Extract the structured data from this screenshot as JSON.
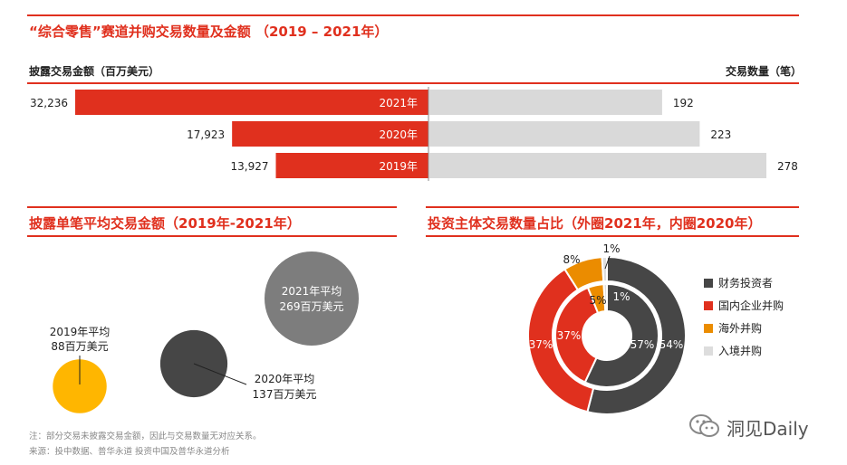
{
  "section1": {
    "title": "“综合零售”赛道并购交易数量及金额 （2019 – 2021年）",
    "left_label": "披露交易金额（百万美元）",
    "right_label": "交易数量（笔）"
  },
  "section2": {
    "title": "披露单笔平均交易金额（2019年-2021年）"
  },
  "section3": {
    "title": "投资主体交易数量占比（外圈2021年，内圈2020年）"
  },
  "chart_data": [
    {
      "type": "bar",
      "orientation": "horizontal-butterfly",
      "categories": [
        "2021年",
        "2020年",
        "2019年"
      ],
      "series": [
        {
          "name": "披露交易金额（百万美元）",
          "values": [
            32236,
            17923,
            13927
          ],
          "labels": [
            "32,236",
            "17,923",
            "13,927"
          ],
          "color": "#e0301e"
        },
        {
          "name": "交易数量（笔）",
          "values": [
            192,
            223,
            278
          ],
          "labels": [
            "192",
            "223",
            "278"
          ],
          "color": "#d9d9d9"
        }
      ]
    },
    {
      "type": "scatter",
      "style": "bubble",
      "points": [
        {
          "year": "2019年平均",
          "value": 88,
          "value_label": "88百万美元",
          "color": "#ffb600"
        },
        {
          "year": "2020年平均",
          "value": 137,
          "value_label": "137百万美元",
          "color": "#464646"
        },
        {
          "year": "2021年平均",
          "value": 269,
          "value_label": "269百万美元",
          "color": "#7d7d7d"
        }
      ]
    },
    {
      "type": "pie",
      "style": "double-donut",
      "categories": [
        "财务投资者",
        "国内企业并购",
        "海外并购",
        "入境并购"
      ],
      "colors": [
        "#464646",
        "#e0301e",
        "#eb8c00",
        "#dddddd"
      ],
      "series": [
        {
          "name": "2021年",
          "values": [
            54,
            37,
            8,
            1
          ],
          "labels": [
            "54%",
            "37%",
            "8%",
            "1%"
          ]
        },
        {
          "name": "2020年",
          "values": [
            57,
            37,
            5,
            1
          ],
          "labels": [
            "57%",
            "37%",
            "5%",
            "1%"
          ]
        }
      ],
      "legend": "right"
    }
  ],
  "footer": {
    "note": "注：部分交易未披露交易金额，因此与交易数量无对应关系。",
    "source": "来源：投中数据、普华永道 投资中国及普华永道分析",
    "watermark": "洞见Daily"
  }
}
